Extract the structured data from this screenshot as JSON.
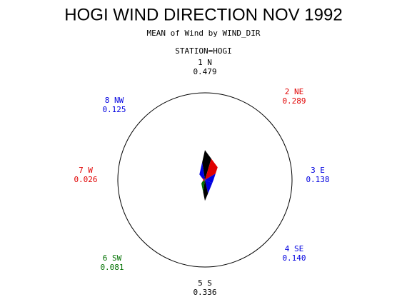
{
  "chart_data": {
    "type": "star",
    "title": "HOGI WIND DIRECTION NOV 1992",
    "subtitle": "MEAN of Wind by WIND_DIR",
    "station": "STATION=HOGI",
    "categories": [
      "1 N",
      "2 NE",
      "3 E",
      "4 SE",
      "5 S",
      "6 SW",
      "7 W",
      "8 NW"
    ],
    "values": [
      0.479,
      0.289,
      0.138,
      0.14,
      0.336,
      0.081,
      0.026,
      0.125
    ],
    "value_labels": [
      "0.479",
      "0.289",
      "0.138",
      "0.140",
      "0.336",
      "0.081",
      "0.026",
      "0.125"
    ],
    "colors": [
      "#000000",
      "#e00000",
      "#0000e0",
      "#0000e0",
      "#000000",
      "#007000",
      "#e00000",
      "#0000e0"
    ],
    "rlim": [
      0,
      1.4
    ]
  }
}
